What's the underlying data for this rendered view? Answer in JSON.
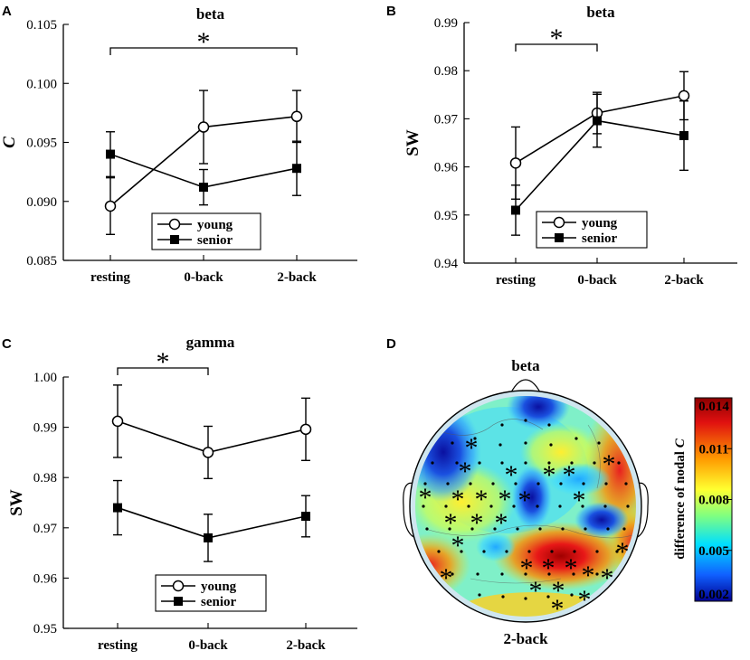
{
  "chart_data": [
    {
      "panel": "A",
      "type": "line",
      "title": "beta",
      "ylabel": "C",
      "ylabel_italic": true,
      "categories": [
        "resting",
        "0-back",
        "2-back"
      ],
      "ylim": [
        0.085,
        0.105
      ],
      "yticks": [
        "0.085",
        "0.090",
        "0.095",
        "0.100",
        "0.105"
      ],
      "series": [
        {
          "name": "young",
          "marker": "open-circle",
          "values": [
            0.0896,
            0.0963,
            0.0972
          ],
          "err": [
            0.0024,
            0.0031,
            0.0022
          ]
        },
        {
          "name": "senior",
          "marker": "filled-square",
          "values": [
            0.094,
            0.0912,
            0.0928
          ],
          "err": [
            0.0019,
            0.0015,
            0.0023
          ]
        }
      ],
      "significance": [
        {
          "from": 0,
          "to": 2,
          "label": "*"
        }
      ]
    },
    {
      "panel": "B",
      "type": "line",
      "title": "beta",
      "ylabel": "SW",
      "ylabel_italic": false,
      "categories": [
        "resting",
        "0-back",
        "2-back"
      ],
      "ylim": [
        0.94,
        0.99
      ],
      "yticks": [
        "0.94",
        "0.95",
        "0.96",
        "0.97",
        "0.98",
        "0.99"
      ],
      "series": [
        {
          "name": "young",
          "marker": "open-circle",
          "values": [
            0.9608,
            0.9712,
            0.9748
          ],
          "err": [
            0.0075,
            0.0043,
            0.005
          ]
        },
        {
          "name": "senior",
          "marker": "filled-square",
          "values": [
            0.951,
            0.9696,
            0.9665
          ],
          "err": [
            0.0052,
            0.0055,
            0.0072
          ]
        }
      ],
      "significance": [
        {
          "from": 0,
          "to": 1,
          "label": "*"
        }
      ]
    },
    {
      "panel": "C",
      "type": "line",
      "title": "gamma",
      "ylabel": "SW",
      "ylabel_italic": false,
      "categories": [
        "resting",
        "0-back",
        "2-back"
      ],
      "ylim": [
        0.95,
        1.0
      ],
      "yticks": [
        "0.95",
        "0.96",
        "0.97",
        "0.98",
        "0.99",
        "1.00"
      ],
      "series": [
        {
          "name": "young",
          "marker": "open-circle",
          "values": [
            0.9912,
            0.985,
            0.9896
          ],
          "err": [
            0.0072,
            0.0052,
            0.0062
          ]
        },
        {
          "name": "senior",
          "marker": "filled-square",
          "values": [
            0.974,
            0.968,
            0.9723
          ],
          "err": [
            0.0054,
            0.0047,
            0.0041
          ]
        }
      ],
      "significance": [
        {
          "from": 0,
          "to": 1,
          "label": "*"
        }
      ]
    },
    {
      "panel": "D",
      "type": "heatmap",
      "subtype": "scalp-topography",
      "title": "beta",
      "footer": "2-back",
      "colorbar_label_prefix": "difference of nodal ",
      "colorbar_label_var": "C",
      "colorbar_ticks": [
        "0.014",
        "0.011",
        "0.008",
        "0.005",
        "0.002"
      ],
      "colorbar_range": [
        0.002,
        0.014
      ],
      "significant_electrodes": 27
    }
  ],
  "colors": {
    "axis": "#000000",
    "line": "#000000",
    "background": "#ffffff"
  }
}
